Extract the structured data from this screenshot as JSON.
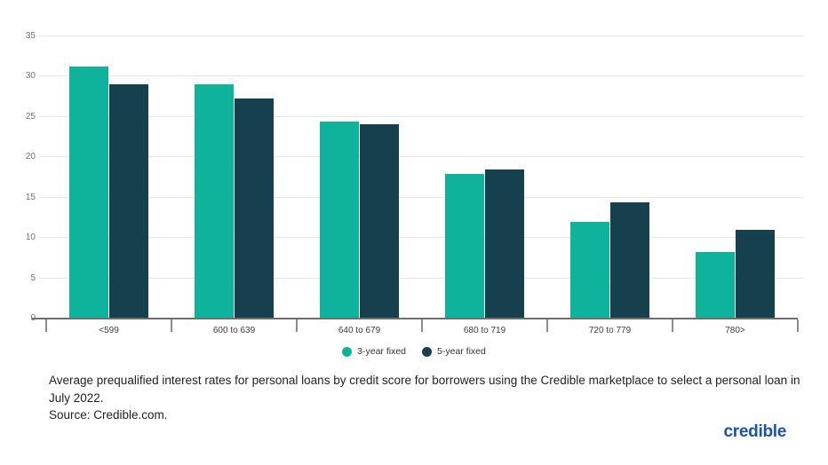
{
  "chart_data": {
    "type": "bar",
    "title": "",
    "xlabel": "",
    "ylabel": "",
    "categories": [
      "<599",
      "600 to 639",
      "640 to 679",
      "680 to 719",
      "720 to 779",
      "780>"
    ],
    "series": [
      {
        "name": "3-year fixed",
        "color": "#0fb39b",
        "values": [
          31.1,
          28.9,
          24.3,
          17.8,
          11.9,
          8.1
        ]
      },
      {
        "name": "5-year fixed",
        "color": "#17404f",
        "values": [
          29.0,
          27.2,
          24.0,
          18.4,
          14.3,
          10.9
        ]
      }
    ],
    "ylim": [
      0,
      35
    ],
    "yticks": [
      0,
      5,
      10,
      15,
      20,
      25,
      30,
      35
    ],
    "grid": true,
    "legend_position": "bottom"
  },
  "caption": {
    "line1": "Average prequalified interest rates for personal loans by credit score for borrowers using the Credible marketplace to select a personal loan in July 2022.",
    "line2": "Source: Credible.com."
  },
  "branding": {
    "logo_text": "credible",
    "logo_color": "#1a53a8"
  },
  "colors": {
    "background": "#ffffff",
    "gridline": "#e9e9e9",
    "axis_line": "#6e6e6e",
    "tick_label": "#6f6f6f",
    "category_label": "#3d3d3d"
  }
}
